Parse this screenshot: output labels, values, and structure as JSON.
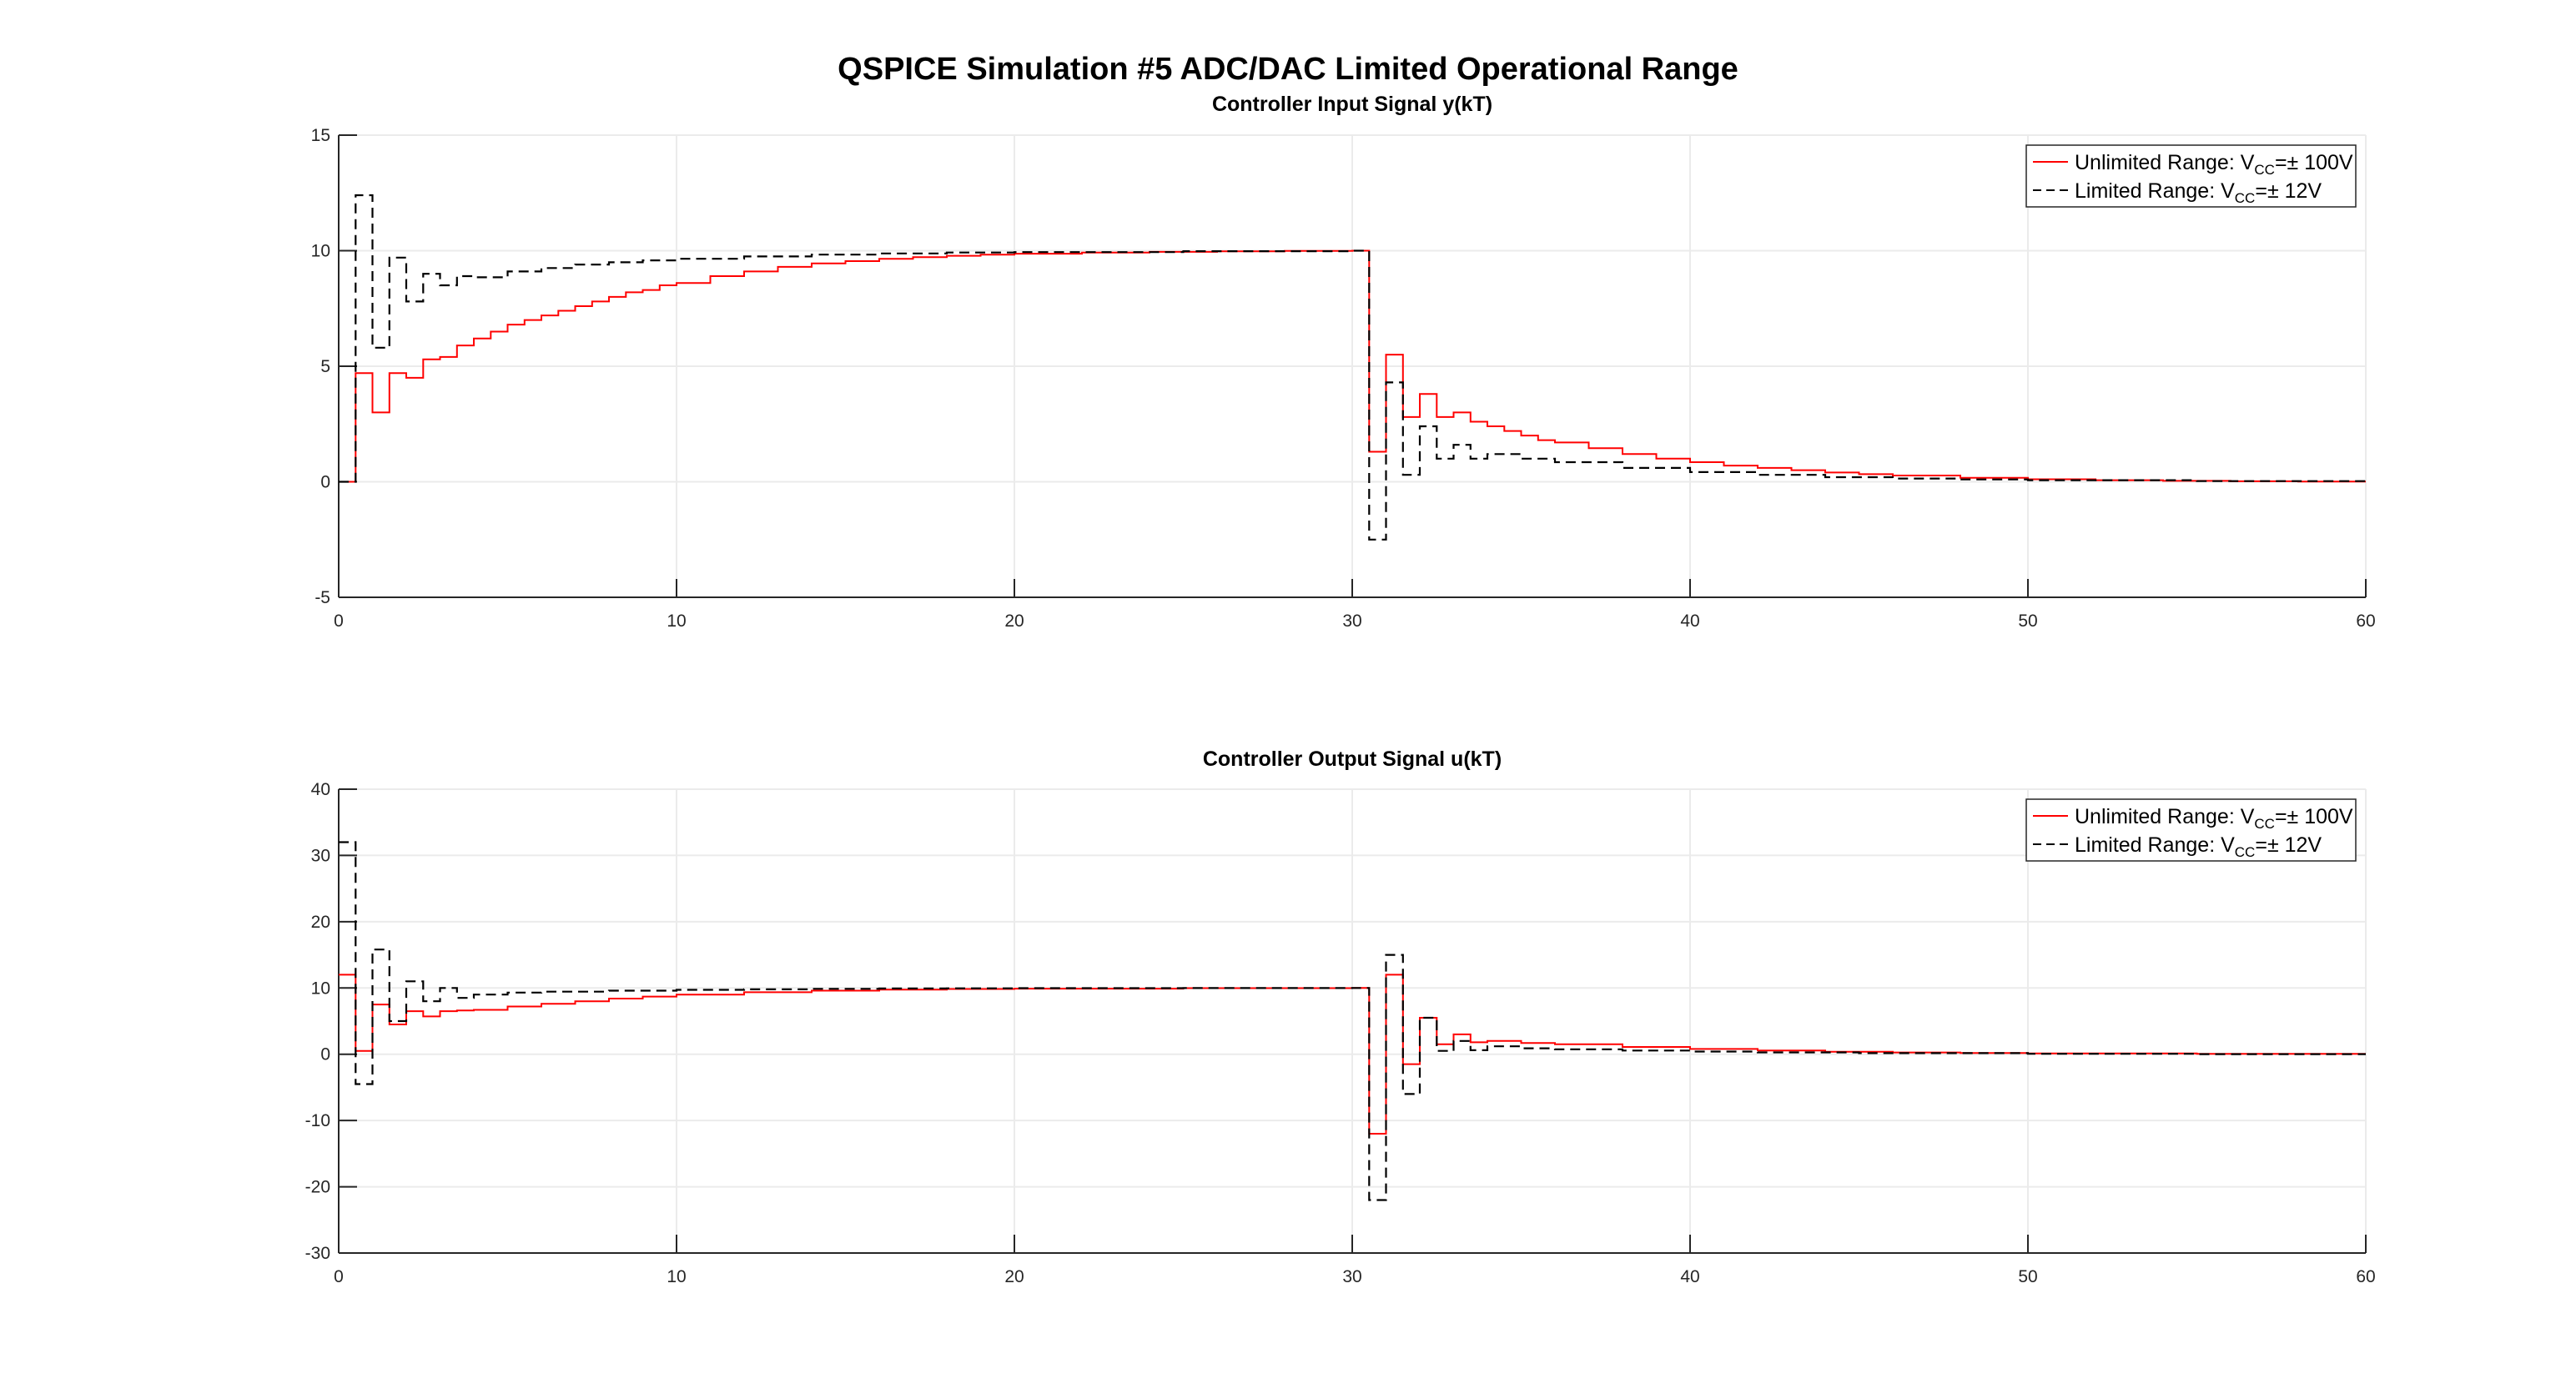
{
  "figure_title": "QSPICE Simulation #5 ADC/DAC Limited Operational Range",
  "colors": {
    "unlimited": "#ff0000",
    "limited": "#000000",
    "grid": "#ebebeb",
    "axis": "#262626"
  },
  "chart_data": [
    {
      "type": "line",
      "title": "Controller Input Signal y(kT)",
      "xlim": [
        0,
        60
      ],
      "ylim": [
        -5,
        15
      ],
      "xticks": [
        0,
        10,
        20,
        30,
        40,
        50,
        60
      ],
      "yticks": [
        -5,
        0,
        5,
        10,
        15
      ],
      "xticklabels": [
        "0",
        "10",
        "20",
        "30",
        "40",
        "50",
        "60"
      ],
      "yticklabels": [
        "-5",
        "0",
        "5",
        "10",
        "15"
      ],
      "grid": true,
      "step": true,
      "legend": {
        "placement": "top-right",
        "entries": [
          {
            "main": "Unlimited Range: V",
            "sub": "CC",
            "tail": "=± 100V"
          },
          {
            "main": "Limited Range: V",
            "sub": "CC",
            "tail": "=± 12V"
          }
        ]
      },
      "series": [
        {
          "name": "Unlimited Range: VCC=± 100V",
          "color": "#ff0000",
          "dash": "solid",
          "x": [
            0,
            0.5,
            0.5,
            1.0,
            1.5,
            2.0,
            2.5,
            3.0,
            3.5,
            4.0,
            4.5,
            5.0,
            5.5,
            6.0,
            6.5,
            7.0,
            7.5,
            8.0,
            8.5,
            9.0,
            9.5,
            10.0,
            11.0,
            12.0,
            13.0,
            14.0,
            15.0,
            16.0,
            17.0,
            18.0,
            19.0,
            20.0,
            22.0,
            24.0,
            26.0,
            28.0,
            30.0,
            30.5,
            30.5,
            31.0,
            31.5,
            32.0,
            32.5,
            33.0,
            33.5,
            34.0,
            34.5,
            35.0,
            35.5,
            36.0,
            37.0,
            38.0,
            39.0,
            40.0,
            41.0,
            42.0,
            43.0,
            44.0,
            45.0,
            46.0,
            48.0,
            50.0,
            52.0,
            54.0,
            56.0,
            58.0,
            60.0
          ],
          "y": [
            0,
            0,
            4.7,
            3.0,
            4.7,
            4.5,
            5.3,
            5.4,
            5.9,
            6.2,
            6.5,
            6.8,
            7.0,
            7.2,
            7.4,
            7.6,
            7.8,
            8.0,
            8.2,
            8.3,
            8.5,
            8.6,
            8.9,
            9.1,
            9.3,
            9.45,
            9.55,
            9.65,
            9.72,
            9.78,
            9.83,
            9.87,
            9.92,
            9.95,
            9.97,
            9.99,
            10.0,
            10.0,
            1.3,
            5.5,
            2.8,
            3.8,
            2.8,
            3.0,
            2.6,
            2.4,
            2.2,
            2.0,
            1.8,
            1.7,
            1.45,
            1.2,
            1.0,
            0.85,
            0.7,
            0.6,
            0.5,
            0.4,
            0.33,
            0.27,
            0.17,
            0.11,
            0.07,
            0.04,
            0.02,
            0.01,
            0.0
          ]
        },
        {
          "name": "Limited Range: VCC=± 12V",
          "color": "#000000",
          "dash": "dashed",
          "x": [
            0,
            0.5,
            0.5,
            1.0,
            1.5,
            2.0,
            2.5,
            3.0,
            3.5,
            4.0,
            5.0,
            6.0,
            7.0,
            8.0,
            9.0,
            10.0,
            12.0,
            14.0,
            16.0,
            18.0,
            20.0,
            25.0,
            30.0,
            30.5,
            30.5,
            31.0,
            31.5,
            32.0,
            32.5,
            33.0,
            33.5,
            34.0,
            35.0,
            36.0,
            38.0,
            40.0,
            42.0,
            44.0,
            46.0,
            48.0,
            50.0,
            55.0,
            60.0
          ],
          "y": [
            0,
            0,
            12.4,
            5.8,
            9.7,
            7.8,
            9.0,
            8.5,
            8.9,
            8.85,
            9.1,
            9.25,
            9.4,
            9.5,
            9.58,
            9.65,
            9.75,
            9.83,
            9.88,
            9.92,
            9.94,
            9.98,
            10.0,
            10.0,
            -2.5,
            4.3,
            0.3,
            2.4,
            1.0,
            1.6,
            1.0,
            1.2,
            1.0,
            0.85,
            0.6,
            0.42,
            0.3,
            0.2,
            0.14,
            0.1,
            0.07,
            0.03,
            0.0
          ]
        }
      ]
    },
    {
      "type": "line",
      "title": "Controller Output Signal u(kT)",
      "xlim": [
        0,
        60
      ],
      "ylim": [
        -30,
        40
      ],
      "xticks": [
        0,
        10,
        20,
        30,
        40,
        50,
        60
      ],
      "yticks": [
        -30,
        -20,
        -10,
        0,
        10,
        20,
        30,
        40
      ],
      "xticklabels": [
        "0",
        "10",
        "20",
        "30",
        "40",
        "50",
        "60"
      ],
      "yticklabels": [
        "-30",
        "-20",
        "-10",
        "0",
        "10",
        "20",
        "30",
        "40"
      ],
      "grid": true,
      "step": true,
      "legend": {
        "placement": "top-right",
        "entries": [
          {
            "main": "Unlimited Range: V",
            "sub": "CC",
            "tail": "=± 100V"
          },
          {
            "main": "Limited Range: V",
            "sub": "CC",
            "tail": "=± 12V"
          }
        ]
      },
      "series": [
        {
          "name": "Unlimited Range: VCC=± 100V",
          "color": "#ff0000",
          "dash": "solid",
          "x": [
            0,
            0.5,
            1.0,
            1.5,
            2.0,
            2.5,
            3.0,
            3.5,
            4.0,
            5.0,
            6.0,
            7.0,
            8.0,
            9.0,
            10.0,
            12.0,
            14.0,
            16.0,
            18.0,
            20.0,
            25.0,
            30.0,
            30.5,
            31.0,
            31.5,
            32.0,
            32.5,
            33.0,
            33.5,
            34.0,
            35.0,
            36.0,
            38.0,
            40.0,
            42.0,
            44.0,
            46.0,
            48.0,
            50.0,
            55.0,
            60.0
          ],
          "y": [
            12,
            0.5,
            7.5,
            4.5,
            6.5,
            5.7,
            6.5,
            6.6,
            6.7,
            7.2,
            7.6,
            8.0,
            8.4,
            8.7,
            9.0,
            9.35,
            9.6,
            9.75,
            9.85,
            9.9,
            9.97,
            10.0,
            -12,
            12,
            -1.5,
            5.5,
            1.5,
            3.0,
            1.8,
            2.0,
            1.7,
            1.5,
            1.1,
            0.8,
            0.55,
            0.38,
            0.26,
            0.18,
            0.12,
            0.05,
            0.0
          ]
        },
        {
          "name": "Limited Range: VCC=± 12V",
          "color": "#000000",
          "dash": "dashed",
          "x": [
            0,
            0.5,
            1.0,
            1.5,
            2.0,
            2.5,
            3.0,
            3.5,
            4.0,
            5.0,
            6.0,
            8.0,
            10.0,
            12.0,
            14.0,
            16.0,
            18.0,
            20.0,
            25.0,
            30.0,
            30.5,
            31.0,
            31.5,
            32.0,
            32.5,
            33.0,
            33.5,
            34.0,
            35.0,
            36.0,
            38.0,
            40.0,
            42.0,
            45.0,
            50.0,
            55.0,
            60.0
          ],
          "y": [
            32,
            -4.5,
            15.8,
            5.0,
            11.0,
            8.0,
            10.0,
            8.5,
            9.0,
            9.3,
            9.45,
            9.6,
            9.72,
            9.8,
            9.87,
            9.92,
            9.95,
            9.97,
            9.99,
            10.0,
            -22,
            15,
            -6,
            5.5,
            0.5,
            2.0,
            0.6,
            1.2,
            0.9,
            0.75,
            0.55,
            0.4,
            0.28,
            0.16,
            0.06,
            0.02,
            0.0
          ]
        }
      ]
    }
  ]
}
